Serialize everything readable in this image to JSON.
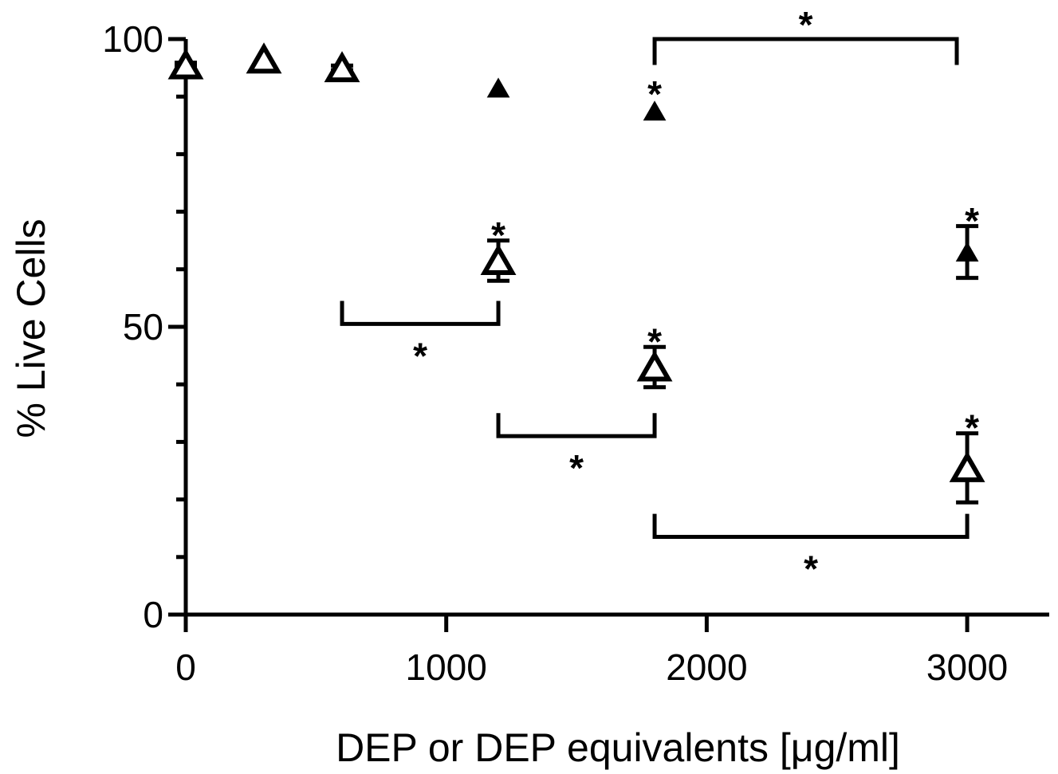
{
  "chart_data": {
    "type": "scatter",
    "title": "",
    "xlabel": "DEP or DEP equivalents [μg/ml]",
    "ylabel": "% Live Cells",
    "xlim": [
      0,
      3300
    ],
    "ylim": [
      0,
      100
    ],
    "x_ticks": [
      0,
      1000,
      2000,
      3000
    ],
    "x_tick_labels": [
      "0",
      "1000",
      "2000",
      "3000"
    ],
    "y_ticks": [
      0,
      50,
      100
    ],
    "y_tick_labels": [
      "0",
      "50",
      "100"
    ],
    "y_minor_step": 10,
    "grid": false,
    "legend": "none",
    "series": [
      {
        "marker": "filled-triangle",
        "points": [
          {
            "x": 0,
            "y": 95,
            "err": 0.6
          },
          {
            "x": 300,
            "y": 96,
            "err": 0
          },
          {
            "x": 600,
            "y": 95,
            "err": 0
          },
          {
            "x": 1200,
            "y": 91.5,
            "err": 0
          },
          {
            "x": 1800,
            "y": 87.5,
            "err": 0
          },
          {
            "x": 3000,
            "y": 63,
            "err": 4.5
          }
        ]
      },
      {
        "marker": "open-triangle",
        "points": [
          {
            "x": 0,
            "y": 95.5,
            "err": 0.4
          },
          {
            "x": 300,
            "y": 96.5,
            "err": 0
          },
          {
            "x": 600,
            "y": 95,
            "err": 0.4
          },
          {
            "x": 1200,
            "y": 61.5,
            "err": 3.5
          },
          {
            "x": 1800,
            "y": 43,
            "err": 3.5
          },
          {
            "x": 3000,
            "y": 25.5,
            "err": 6
          }
        ]
      }
    ],
    "point_annotations": [
      {
        "x": 1200,
        "y": 66.5,
        "text": "*"
      },
      {
        "x": 1800,
        "y": 91,
        "text": "*"
      },
      {
        "x": 1800,
        "y": 48,
        "text": "*"
      },
      {
        "x": 3000,
        "y": 69,
        "text": "*"
      },
      {
        "x": 3000,
        "y": 33,
        "text": "*"
      }
    ],
    "brackets": [
      {
        "x1": 1800,
        "x2": 2960,
        "y": 100,
        "tick_to": 95.5,
        "direction": "above",
        "text": "*"
      },
      {
        "x1": 600,
        "x2": 1200,
        "y": 50.5,
        "tick_to": 54.5,
        "direction": "below",
        "text": "*"
      },
      {
        "x1": 1200,
        "x2": 1800,
        "y": 31,
        "tick_to": 35,
        "direction": "below",
        "text": "*"
      },
      {
        "x1": 1800,
        "x2": 3000,
        "y": 13.5,
        "tick_to": 17.5,
        "direction": "below",
        "text": "*"
      }
    ]
  }
}
